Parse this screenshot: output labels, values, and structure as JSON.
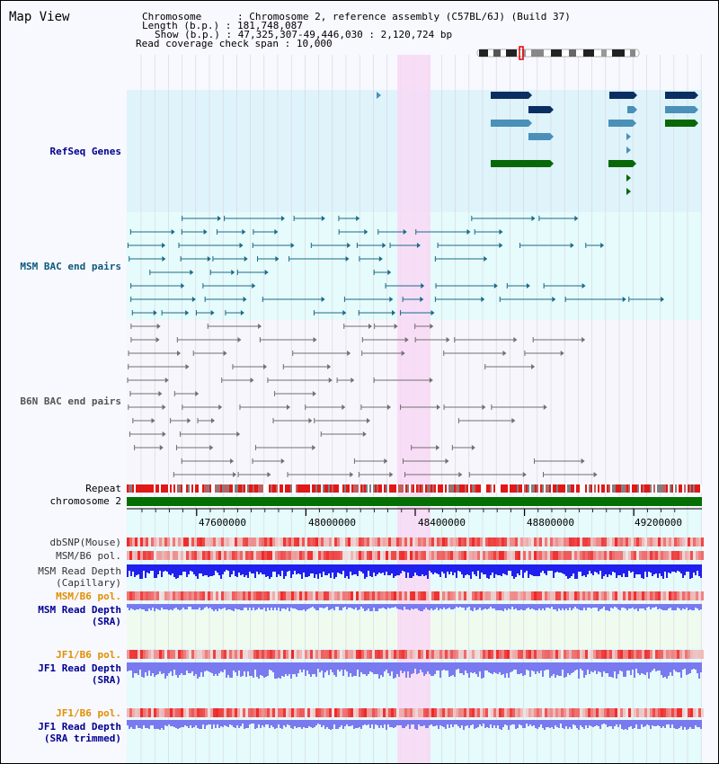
{
  "header": {
    "map_title": "Map View",
    "chromosome_key": "Chromosome",
    "chromosome_value": "Chromosome 2, reference assembly (C57BL/6J) (Build 37)",
    "length_key": "Length (b.p.)",
    "length_value": "181,748,087",
    "show_key": "Show (b.p.)",
    "show_value": "47,325,307-49,446,030 : 2,120,724 bp",
    "read_coverage_key": "Read coverage check span",
    "read_coverage_value": "10,000"
  },
  "tracks": {
    "refseq": "RefSeq Genes",
    "msm_bac": "MSM BAC end pairs",
    "b6n_bac": "B6N BAC end pairs",
    "repeat": "Repeat",
    "chromosome": "chromosome 2",
    "dbsnp": "dbSNP(Mouse)",
    "msm_b6_pol_1": "MSM/B6 pol.",
    "msm_depth_cap_1": "MSM Read Depth",
    "msm_depth_cap_2": "(Capillary)",
    "msm_b6_pol_2": "MSM/B6 pol.",
    "msm_depth_sra_1": "MSM Read Depth",
    "msm_depth_sra_2": "(SRA)",
    "jf1_pol_1": "JF1/B6 pol.",
    "jf1_depth_sra_1": "JF1 Read Depth",
    "jf1_depth_sra_2": "(SRA)",
    "jf1_pol_2": "JF1/B6 pol.",
    "jf1_depth_trim_1": "JF1 Read Depth",
    "jf1_depth_trim_2": "(SRA trimmed)"
  },
  "ruler": {
    "ticks": [
      "47600000",
      "48000000",
      "48400000",
      "48800000",
      "49200000"
    ]
  },
  "colors": {
    "refseq_bg": "#dff3fb",
    "msm_bg": "#e6fbfb",
    "b6n_bg": "#f6f6fc",
    "highlight": "#f8d8f4",
    "gene_navy": "#0a2e62",
    "gene_steel": "#4a90b8",
    "gene_green": "#086808",
    "msm_pair": "#1a6a8a",
    "b6n_pair": "#707070",
    "depth_blue": "#2020ee",
    "depth_light": "#7a7af0",
    "pol_red": "#ee3030",
    "chrom_green": "#047004",
    "label_navy": "#000090",
    "label_teal": "#0a5a7a",
    "label_gray": "#555555",
    "label_orange": "#e09000"
  }
}
